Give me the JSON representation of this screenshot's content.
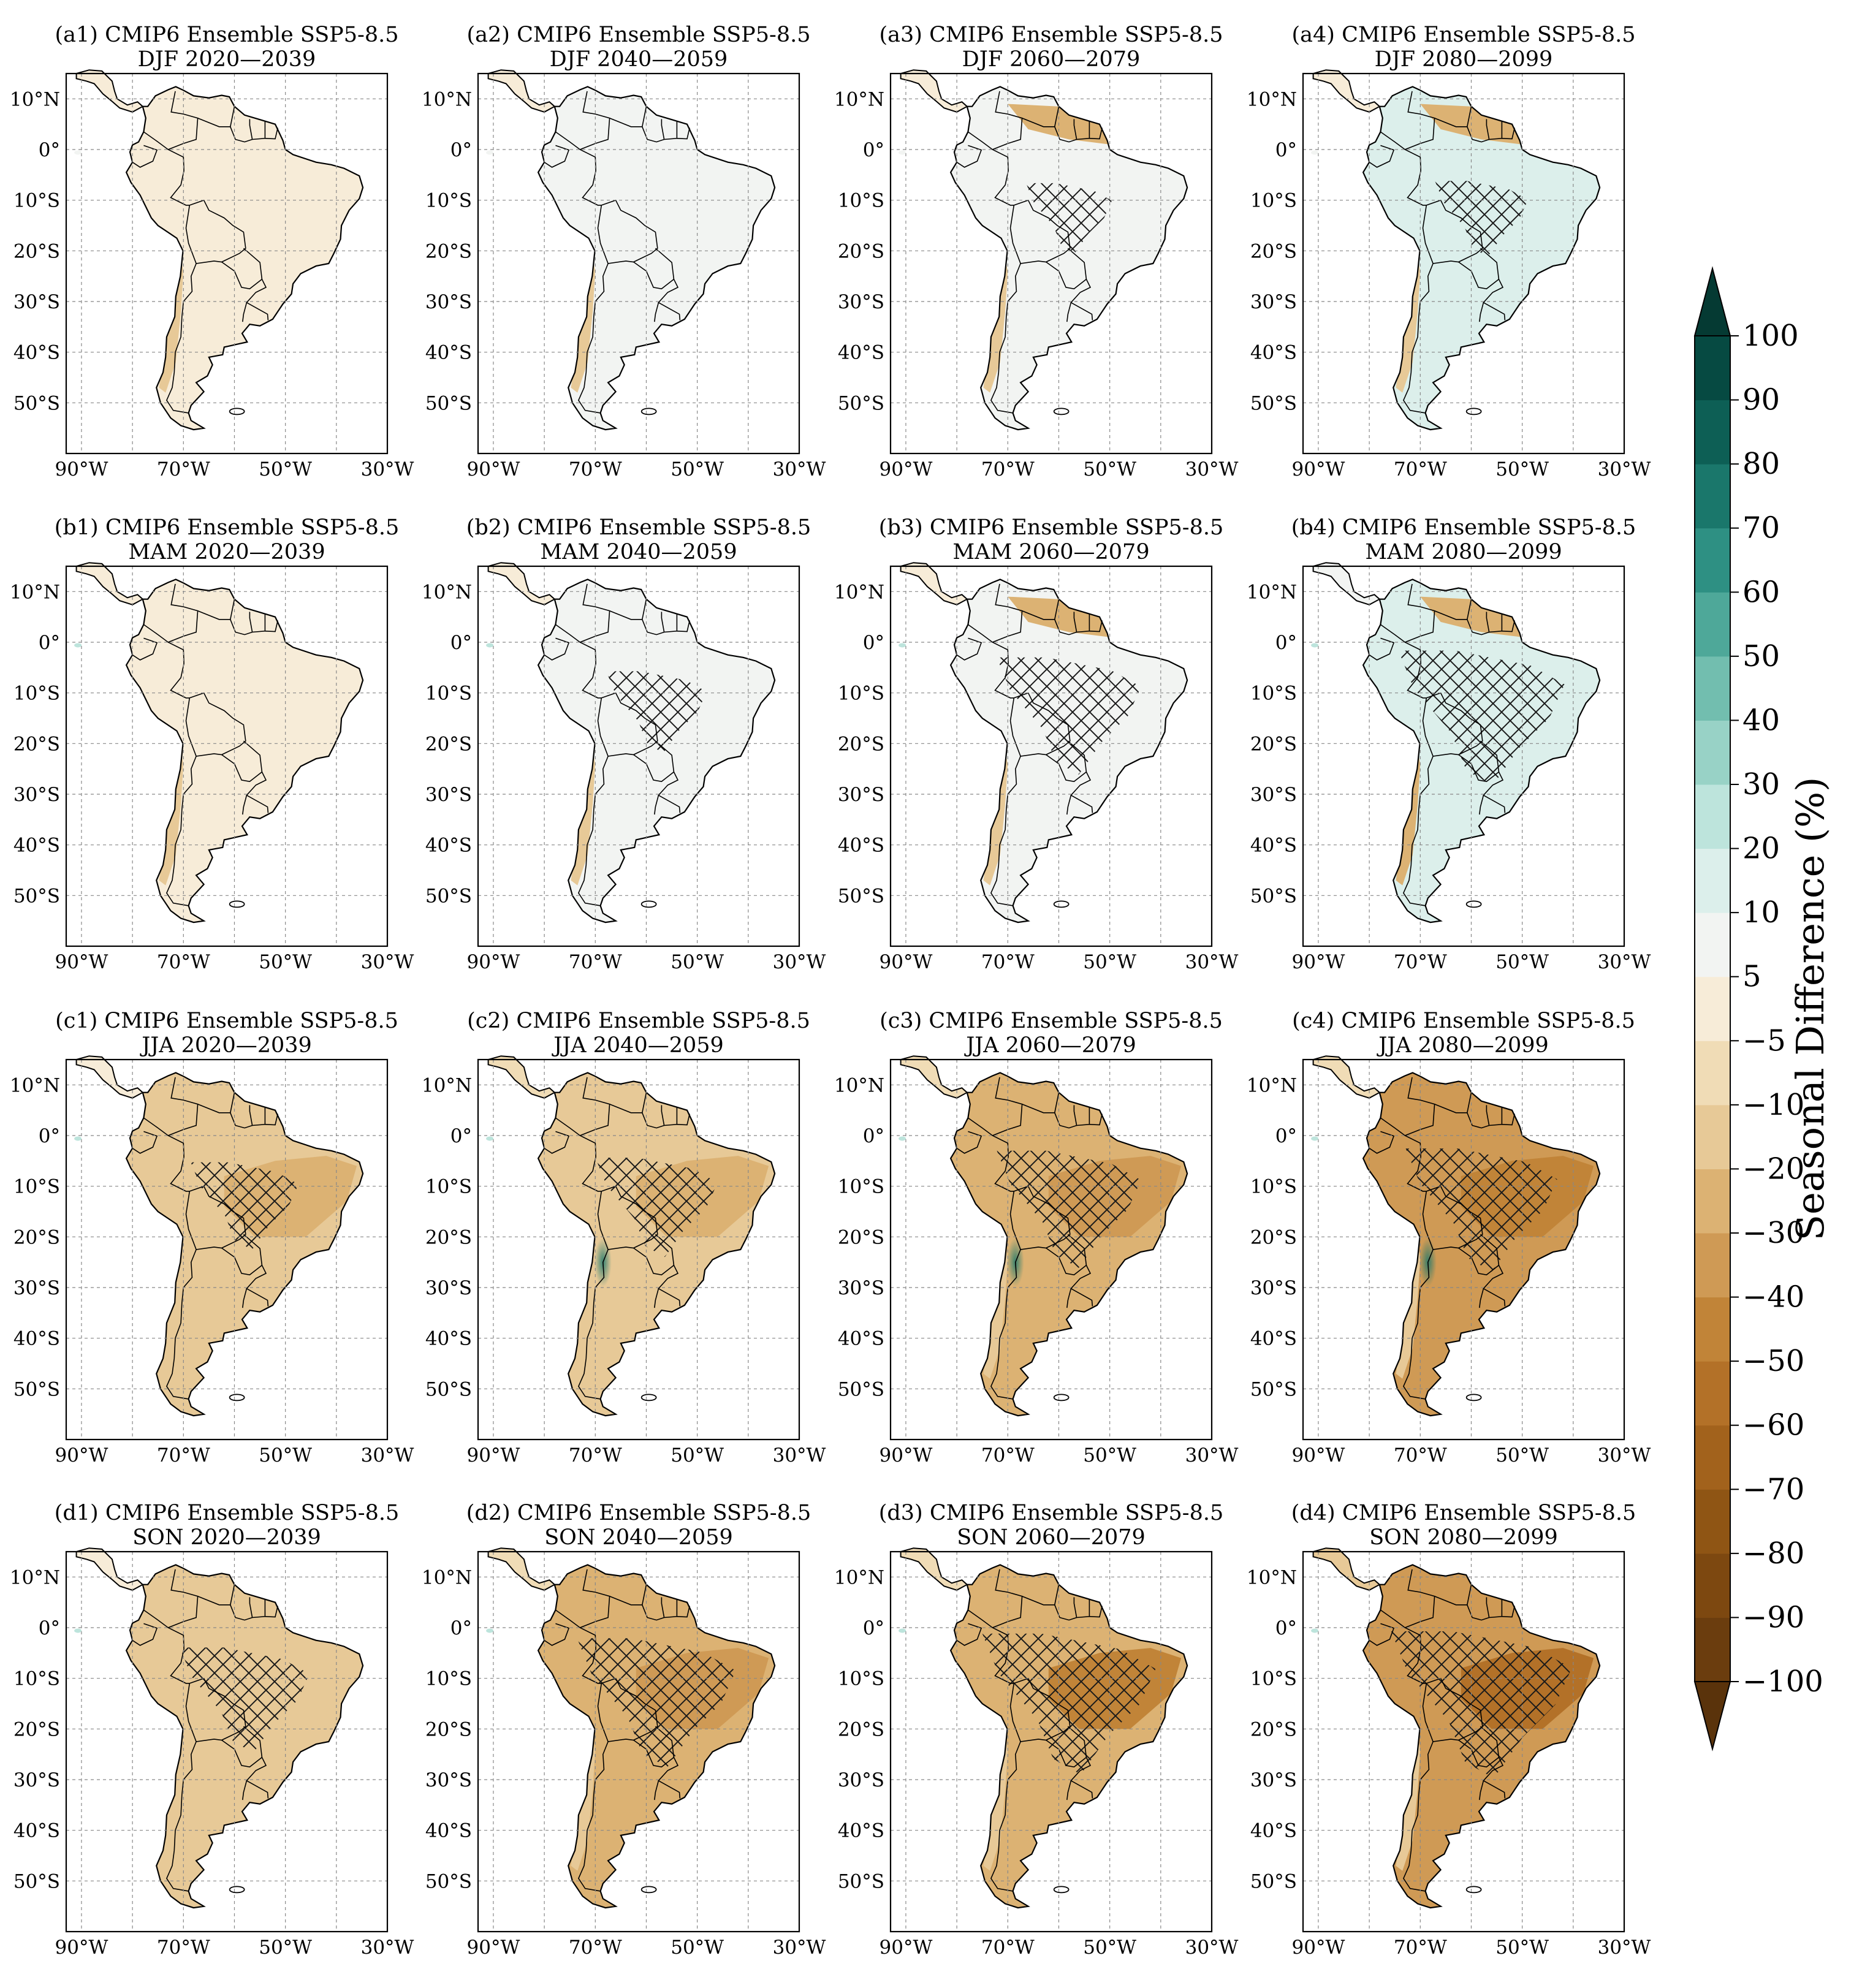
{
  "figure": {
    "rows": [
      {
        "id": "a",
        "season": "DJF"
      },
      {
        "id": "b",
        "season": "MAM"
      },
      {
        "id": "c",
        "season": "JJA"
      },
      {
        "id": "d",
        "season": "SON"
      }
    ],
    "periods": [
      "2020—2039",
      "2040—2059",
      "2060—2079",
      "2080—2099"
    ],
    "panels": [
      {
        "label": "(a1) CMIP6 Ensemble SSP5-8.5",
        "subtitle": "DJF 2020—2039",
        "row": 0,
        "col": 0,
        "mean_change": 0,
        "hatch_cover": 0.0
      },
      {
        "label": "(a2) CMIP6 Ensemble SSP5-8.5",
        "subtitle": "DJF 2040—2059",
        "row": 0,
        "col": 1,
        "mean_change": 6,
        "hatch_cover": 0.0
      },
      {
        "label": "(a3) CMIP6 Ensemble SSP5-8.5",
        "subtitle": "DJF 2060—2079",
        "row": 0,
        "col": 2,
        "mean_change": 10,
        "hatch_cover": 0.05
      },
      {
        "label": "(a4) CMIP6 Ensemble SSP5-8.5",
        "subtitle": "DJF 2080—2099",
        "row": 0,
        "col": 3,
        "mean_change": 14,
        "hatch_cover": 0.1
      },
      {
        "label": "(b1) CMIP6 Ensemble SSP5-8.5",
        "subtitle": "MAM 2020—2039",
        "row": 1,
        "col": 0,
        "mean_change": 2,
        "hatch_cover": 0.0
      },
      {
        "label": "(b2) CMIP6 Ensemble SSP5-8.5",
        "subtitle": "MAM 2040—2059",
        "row": 1,
        "col": 1,
        "mean_change": 6,
        "hatch_cover": 0.15
      },
      {
        "label": "(b3) CMIP6 Ensemble SSP5-8.5",
        "subtitle": "MAM 2060—2079",
        "row": 1,
        "col": 2,
        "mean_change": 10,
        "hatch_cover": 0.45
      },
      {
        "label": "(b4) CMIP6 Ensemble SSP5-8.5",
        "subtitle": "MAM 2080—2099",
        "row": 1,
        "col": 3,
        "mean_change": 18,
        "hatch_cover": 0.6
      },
      {
        "label": "(c1) CMIP6 Ensemble SSP5-8.5",
        "subtitle": "JJA 2020—2039",
        "row": 2,
        "col": 0,
        "mean_change": -14,
        "hatch_cover": 0.2
      },
      {
        "label": "(c2) CMIP6 Ensemble SSP5-8.5",
        "subtitle": "JJA 2040—2059",
        "row": 2,
        "col": 1,
        "mean_change": -18,
        "hatch_cover": 0.3
      },
      {
        "label": "(c3) CMIP6 Ensemble SSP5-8.5",
        "subtitle": "JJA 2060—2079",
        "row": 2,
        "col": 2,
        "mean_change": -25,
        "hatch_cover": 0.45
      },
      {
        "label": "(c4) CMIP6 Ensemble SSP5-8.5",
        "subtitle": "JJA 2080—2099",
        "row": 2,
        "col": 3,
        "mean_change": -32,
        "hatch_cover": 0.5
      },
      {
        "label": "(d1) CMIP6 Ensemble SSP5-8.5",
        "subtitle": "SON 2020—2039",
        "row": 3,
        "col": 0,
        "mean_change": -12,
        "hatch_cover": 0.35
      },
      {
        "label": "(d2) CMIP6 Ensemble SSP5-8.5",
        "subtitle": "SON 2040—2059",
        "row": 3,
        "col": 1,
        "mean_change": -24,
        "hatch_cover": 0.55
      },
      {
        "label": "(d3) CMIP6 Ensemble SSP5-8.5",
        "subtitle": "SON 2060—2079",
        "row": 3,
        "col": 2,
        "mean_change": -28,
        "hatch_cover": 0.65
      },
      {
        "label": "(d4) CMIP6 Ensemble SSP5-8.5",
        "subtitle": "SON 2080—2099",
        "row": 3,
        "col": 3,
        "mean_change": -36,
        "hatch_cover": 0.7
      }
    ],
    "lat_ticks": [
      {
        "label": "10°N",
        "value": 10
      },
      {
        "label": "0°",
        "value": 0
      },
      {
        "label": "10°S",
        "value": -10
      },
      {
        "label": "20°S",
        "value": -20
      },
      {
        "label": "30°S",
        "value": -30
      },
      {
        "label": "40°S",
        "value": -40
      },
      {
        "label": "50°S",
        "value": -50
      }
    ],
    "lon_ticks": [
      {
        "label": "90°W",
        "value": -90
      },
      {
        "label": "70°W",
        "value": -70
      },
      {
        "label": "50°W",
        "value": -50
      },
      {
        "label": "30°W",
        "value": -30
      }
    ],
    "extent": {
      "lon_min": -93,
      "lon_max": -30,
      "lat_min": -60,
      "lat_max": 15
    },
    "colorbar": {
      "label": "Seasonal Difference (%)",
      "levels": [
        -100,
        -90,
        -80,
        -70,
        -60,
        -50,
        -40,
        -30,
        -20,
        -10,
        -5,
        5,
        10,
        20,
        30,
        40,
        50,
        60,
        70,
        80,
        90,
        100
      ],
      "tick_labels": [
        "100",
        "90",
        "80",
        "70",
        "60",
        "50",
        "40",
        "30",
        "20",
        "10",
        "5",
        "−5",
        "−10",
        "−20",
        "−30",
        "−40",
        "−50",
        "−60",
        "−70",
        "−80",
        "−90",
        "−100"
      ],
      "colors": [
        "#6b3d0e",
        "#7d4810",
        "#8f5514",
        "#a2621c",
        "#b37128",
        "#c18438",
        "#cf9a55",
        "#dcb273",
        "#e7c997",
        "#f0dcb6",
        "#f7ecd8",
        "#f2f4f2",
        "#dcefeb",
        "#bde4dc",
        "#98d2c6",
        "#72beaf",
        "#4ea899",
        "#2e9083",
        "#1a776b",
        "#0d5f55",
        "#064a42"
      ],
      "extend_low_color": "#5a330b",
      "extend_high_color": "#053a33"
    }
  }
}
